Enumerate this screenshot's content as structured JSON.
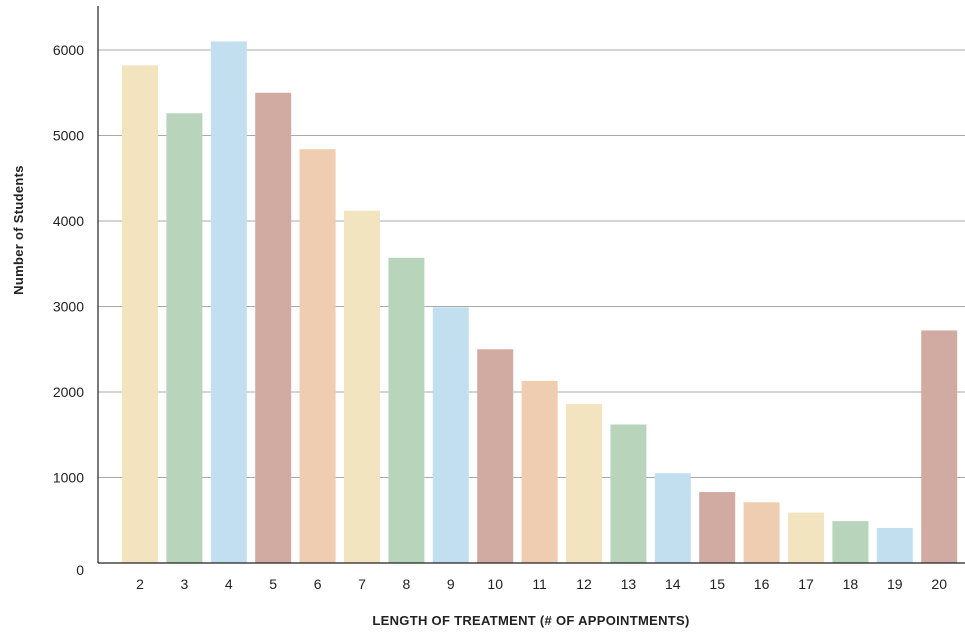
{
  "chart_data": {
    "type": "bar",
    "title": "",
    "xlabel": "LENGTH OF TREATMENT (# OF APPOINTMENTS)",
    "ylabel": "Number of Students",
    "categories": [
      "2",
      "3",
      "4",
      "5",
      "6",
      "7",
      "8",
      "9",
      "10",
      "11",
      "12",
      "13",
      "14",
      "15",
      "16",
      "17",
      "18",
      "19",
      "20"
    ],
    "values": [
      5820,
      5260,
      6100,
      5500,
      4840,
      4120,
      3570,
      2990,
      2500,
      2130,
      1860,
      1620,
      1050,
      830,
      710,
      590,
      490,
      410,
      2720
    ],
    "colors": [
      "#f1e4bf",
      "#b8d5bb",
      "#c2dff0",
      "#d1aba2",
      "#efcdb0",
      "#f1e4bf",
      "#b8d5bb",
      "#c2dff0",
      "#d1aba2",
      "#efcdb0",
      "#f1e4bf",
      "#b8d5bb",
      "#c2dff0",
      "#d1aba2",
      "#efcdb0",
      "#f1e4bf",
      "#b8d5bb",
      "#c2dff0",
      "#d1aba2"
    ],
    "yticks": [
      0,
      1000,
      2000,
      3000,
      4000,
      5000,
      6000
    ],
    "ylim": [
      0,
      6500
    ],
    "grid": true,
    "grid_color": "#a9a9a9"
  }
}
